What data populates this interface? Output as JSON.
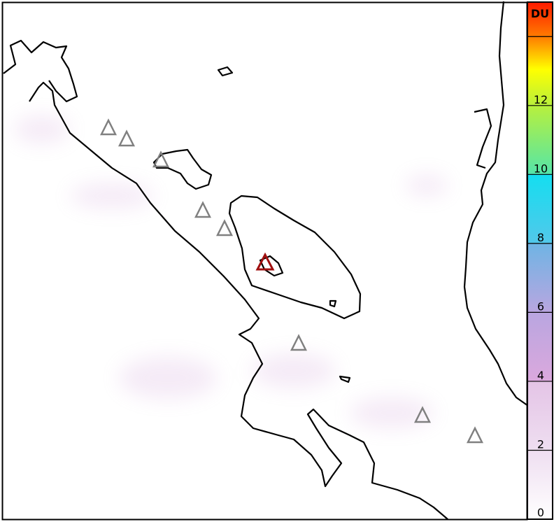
{
  "map": {
    "volcanoes_gray": 8,
    "volcano_highlight_color": "#a01010",
    "volcano_color": "#808080"
  },
  "colorbar": {
    "unit": "DU",
    "range": [
      0,
      15
    ],
    "tick_labels": [
      "0",
      "2",
      "4",
      "6",
      "8",
      "10",
      "12"
    ],
    "colors": [
      "#ffffff",
      "#e9d2ec",
      "#d79ad9",
      "#7fb2e8",
      "#19dcef",
      "#7ee67a",
      "#ffff00",
      "#ff8c00",
      "#ff2000"
    ]
  }
}
